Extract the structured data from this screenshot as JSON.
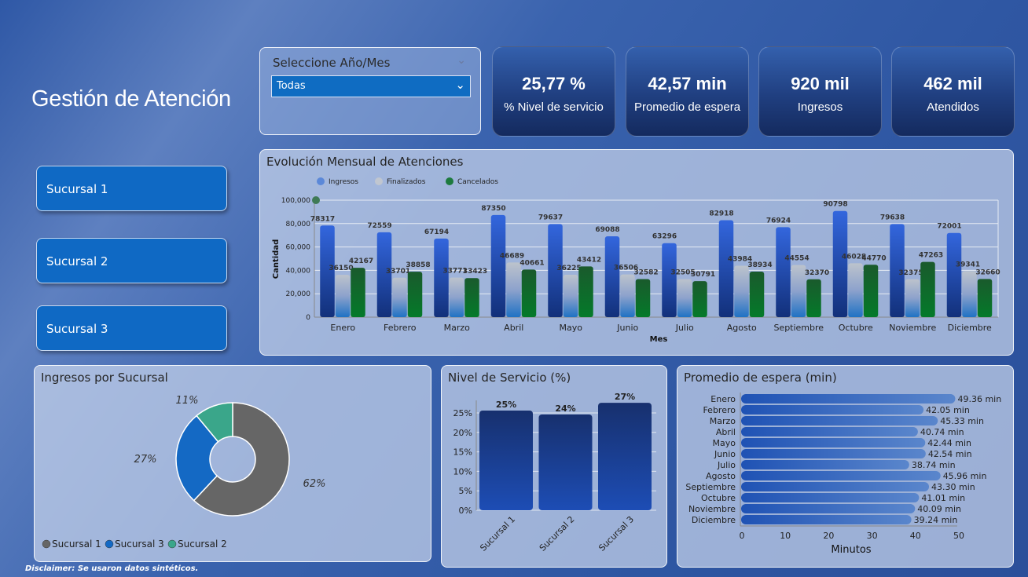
{
  "title": "Gestión de Atención",
  "slicer": {
    "label": "Seleccione Año/Mes",
    "value": "Todas"
  },
  "kpis": [
    {
      "value": "25,77 %",
      "label": "% Nivel de servicio"
    },
    {
      "value": "42,57 min",
      "label": "Promedio de espera"
    },
    {
      "value": "920 mil",
      "label": "Ingresos"
    },
    {
      "value": "462 mil",
      "label": "Atendidos"
    }
  ],
  "sucursal_buttons": [
    "Sucursal 1",
    "Sucursal 2",
    "Sucursal 3"
  ],
  "disclaimer": "Disclaimer: Se usaron datos sintéticos.",
  "colors": {
    "ingresos": "#2f62d6",
    "finalizados": "#b8c0cc",
    "cancelados": "#0d7a2e",
    "sucursal1": "#666666",
    "sucursal3": "#1469c4",
    "sucursal2": "#3aa68a"
  },
  "chart_data": [
    {
      "type": "bar",
      "title": "Evolución Mensual de Atenciones",
      "xlabel": "Mes",
      "ylabel": "Cantidad",
      "ylim": [
        0,
        100000
      ],
      "yticks": [
        "0",
        "20,000",
        "40,000",
        "60,000",
        "80,000",
        "100,000"
      ],
      "legend": "top-left",
      "grid": true,
      "categories": [
        "Enero",
        "Febrero",
        "Marzo",
        "Abril",
        "Mayo",
        "Junio",
        "Julio",
        "Agosto",
        "Septiembre",
        "Octubre",
        "Noviembre",
        "Diciembre"
      ],
      "series": [
        {
          "name": "Ingresos",
          "values": [
            78317,
            72559,
            67194,
            87350,
            79637,
            69088,
            63296,
            82918,
            76924,
            90798,
            79638,
            72001
          ]
        },
        {
          "name": "Finalizados",
          "values": [
            36150,
            33701,
            33771,
            46689,
            36225,
            36506,
            32505,
            43984,
            44554,
            46028,
            32375,
            39341
          ]
        },
        {
          "name": "Cancelados",
          "values": [
            42167,
            38858,
            33423,
            40661,
            43412,
            32582,
            30791,
            38934,
            32370,
            44770,
            47263,
            32660
          ]
        }
      ]
    },
    {
      "type": "pie",
      "title": "Ingresos por Sucursal",
      "categories": [
        "Sucursal 1",
        "Sucursal 3",
        "Sucursal 2"
      ],
      "values": [
        62,
        27,
        11
      ],
      "labels": [
        "62%",
        "27%",
        "11%"
      ],
      "legend": "bottom-left"
    },
    {
      "type": "bar",
      "title": "Nivel de Servicio (%)",
      "categories": [
        "Sucursal 1",
        "Sucursal 2",
        "Sucursal 3"
      ],
      "values": [
        25,
        24,
        27
      ],
      "labels": [
        "25%",
        "24%",
        "27%"
      ],
      "ylim": [
        0,
        30
      ],
      "yticks": [
        "0%",
        "5%",
        "10%",
        "15%",
        "20%",
        "25%"
      ]
    },
    {
      "type": "bar",
      "title": "Promedio de espera (min)",
      "orientation": "horizontal",
      "xlabel": "Minutos",
      "xlim": [
        0,
        50
      ],
      "xticks": [
        "0",
        "10",
        "20",
        "30",
        "40",
        "50"
      ],
      "categories": [
        "Enero",
        "Febrero",
        "Marzo",
        "Abril",
        "Mayo",
        "Junio",
        "Julio",
        "Agosto",
        "Septiembre",
        "Octubre",
        "Noviembre",
        "Diciembre"
      ],
      "values": [
        49.36,
        42.05,
        45.33,
        40.74,
        42.44,
        42.54,
        38.74,
        45.96,
        43.3,
        41.01,
        40.09,
        39.24
      ],
      "labels": [
        "49.36 min",
        "42.05 min",
        "45.33 min",
        "40.74 min",
        "42.44 min",
        "42.54 min",
        "38.74 min",
        "45.96 min",
        "43.30 min",
        "41.01 min",
        "40.09 min",
        "39.24 min"
      ]
    }
  ]
}
